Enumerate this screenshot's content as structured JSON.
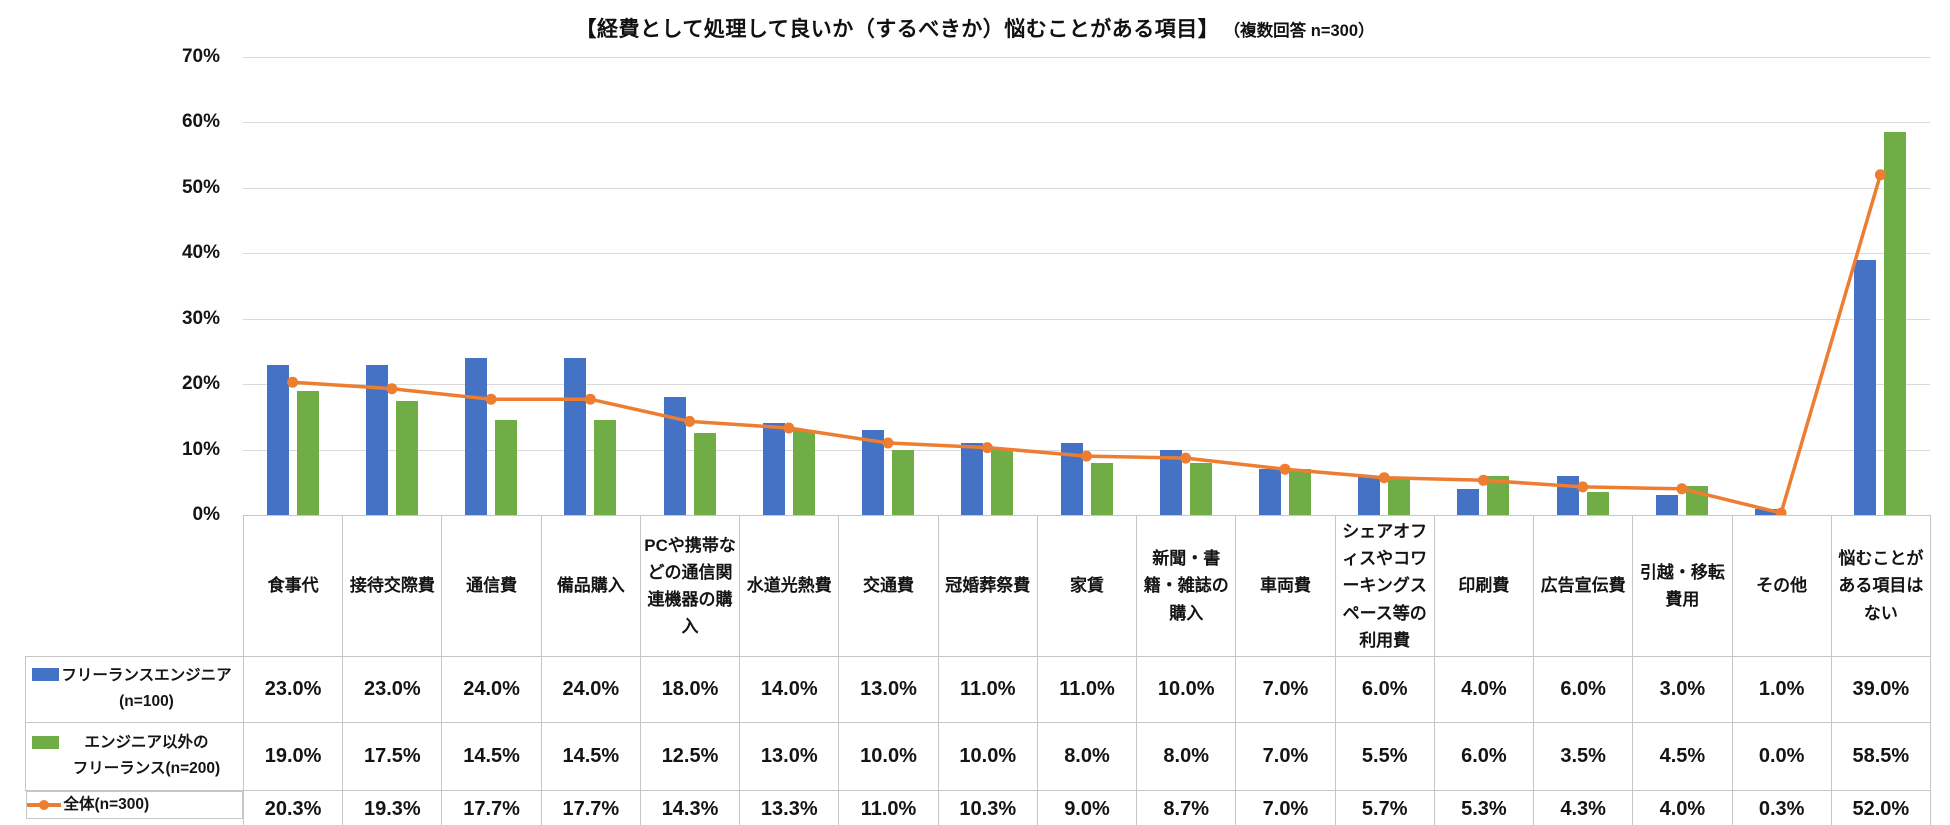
{
  "title": {
    "main": "【経費として処理して良いか（するべきか）悩むことがある項目】",
    "note": "（複数回答 n=300）"
  },
  "colors": {
    "bar_engineer": "#4472C4",
    "bar_non_engineer": "#70AD47",
    "line_total": "#ED7D31",
    "gridline": "#D9D9D9",
    "table_border": "#C6C6C6",
    "text": "#141414"
  },
  "chart_data": {
    "type": "combo-bar-line",
    "title": "【経費として処理して良いか（するべきか）悩むことがある項目】（複数回答 n=300）",
    "categories": [
      "食事代",
      "接待交際費",
      "通信費",
      "備品購入",
      "PCや携帯などの通信関連機器の購入",
      "水道光熱費",
      "交通費",
      "冠婚葬祭費",
      "家賃",
      "新聞・書籍・雑誌の購入",
      "車両費",
      "シェアオフィスやコワーキングスペース等の利用費",
      "印刷費",
      "広告宣伝費",
      "引越・移転費用",
      "その他",
      "悩むことがある項目はない"
    ],
    "series": [
      {
        "name": "フリーランスエンジニア\n(n=100)",
        "type": "bar",
        "color": "#4472C4",
        "values": [
          23.0,
          23.0,
          24.0,
          24.0,
          18.0,
          14.0,
          13.0,
          11.0,
          11.0,
          10.0,
          7.0,
          6.0,
          4.0,
          6.0,
          3.0,
          1.0,
          39.0
        ]
      },
      {
        "name": "エンジニア以外の\nフリーランス(n=200)",
        "type": "bar",
        "color": "#70AD47",
        "values": [
          19.0,
          17.5,
          14.5,
          14.5,
          12.5,
          13.0,
          10.0,
          10.0,
          8.0,
          8.0,
          7.0,
          5.5,
          6.0,
          3.5,
          4.5,
          0.0,
          58.5
        ]
      },
      {
        "name": "全体(n=300)",
        "type": "line",
        "color": "#ED7D31",
        "values": [
          20.3,
          19.3,
          17.7,
          17.7,
          14.3,
          13.3,
          11.0,
          10.3,
          9.0,
          8.7,
          7.0,
          5.7,
          5.3,
          4.3,
          4.0,
          0.3,
          52.0
        ]
      }
    ],
    "y_axis": {
      "min": 0,
      "max": 70,
      "step": 10,
      "tick_labels": [
        "0%",
        "10%",
        "20%",
        "30%",
        "40%",
        "50%",
        "60%",
        "70%"
      ]
    },
    "grid": true,
    "legend_position": "data-table-left",
    "value_format": "one_decimal_percent"
  }
}
